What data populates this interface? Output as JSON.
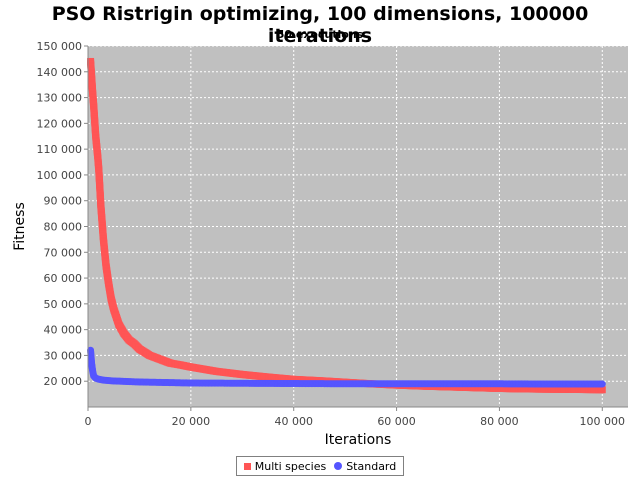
{
  "chart_data": {
    "type": "scatter",
    "title": "PSO Ristrigin optimizing, 100 dimensions, 100000 iterations",
    "subtitle": "50 executions",
    "xlabel": "Iterations",
    "ylabel": "Fitness",
    "xlim": [
      0,
      105000
    ],
    "ylim": [
      10000,
      150000
    ],
    "x_ticks": [
      0,
      20000,
      40000,
      60000,
      80000,
      100000
    ],
    "x_tick_labels": [
      "0",
      "20 000",
      "40 000",
      "60 000",
      "80 000",
      "100 000"
    ],
    "y_ticks": [
      20000,
      30000,
      40000,
      50000,
      60000,
      70000,
      80000,
      90000,
      100000,
      110000,
      120000,
      130000,
      140000,
      150000
    ],
    "y_tick_labels": [
      "20 000",
      "30 000",
      "40 000",
      "50 000",
      "60 000",
      "70 000",
      "80 000",
      "90 000",
      "100 000",
      "110 000",
      "120 000",
      "130 000",
      "140 000",
      "150 000"
    ],
    "grid": true,
    "legend_position": "bottom-center",
    "background": "#c0c0c0",
    "series": [
      {
        "name": "Multi species",
        "marker": "square",
        "color": "#ff5555",
        "x": [
          500,
          700,
          900,
          1100,
          1300,
          1500,
          1700,
          1900,
          2100,
          2500,
          3000,
          3500,
          4000,
          4500,
          5000,
          6000,
          7000,
          8000,
          9000,
          10000,
          12000,
          14000,
          16000,
          18000,
          20000,
          25000,
          30000,
          35000,
          40000,
          45000,
          50000,
          55000,
          60000,
          65000,
          70000,
          75000,
          80000,
          85000,
          90000,
          95000,
          100000
        ],
        "y": [
          144000,
          138000,
          132000,
          127000,
          121000,
          115000,
          111000,
          107000,
          102000,
          88000,
          75000,
          65000,
          58000,
          52000,
          48000,
          42000,
          38500,
          36000,
          34500,
          32500,
          30000,
          28500,
          27000,
          26300,
          25500,
          23800,
          22600,
          21600,
          20700,
          20200,
          19600,
          19000,
          18500,
          18100,
          17800,
          17500,
          17200,
          17000,
          16900,
          16800,
          16700
        ]
      },
      {
        "name": "Standard",
        "marker": "circle",
        "color": "#5555ff",
        "x": [
          500,
          700,
          900,
          1100,
          1500,
          2000,
          3000,
          5000,
          7500,
          10000,
          15000,
          20000,
          30000,
          40000,
          50000,
          60000,
          70000,
          80000,
          90000,
          100000
        ],
        "y": [
          32000,
          27000,
          24000,
          22000,
          21200,
          20800,
          20400,
          20100,
          19900,
          19700,
          19500,
          19300,
          19200,
          19100,
          19000,
          19000,
          19000,
          19000,
          18900,
          18900
        ]
      }
    ]
  }
}
